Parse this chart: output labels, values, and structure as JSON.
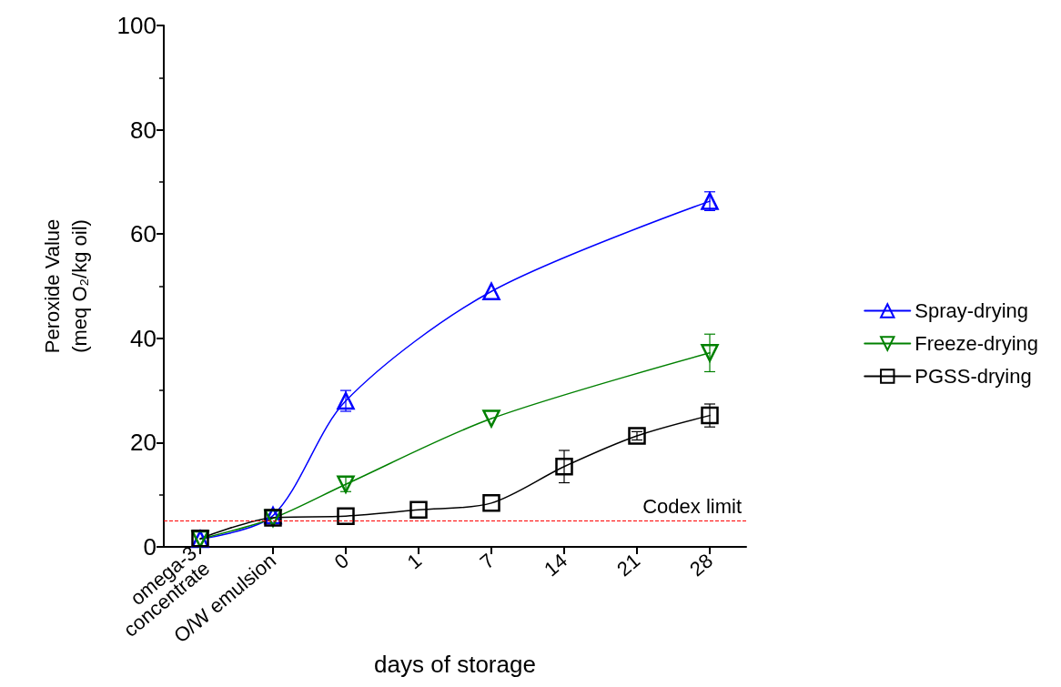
{
  "chart_data": {
    "type": "line",
    "xlabel": "days of storage",
    "ylabel": "Peroxide Value\n(meq O₂/kg oil)",
    "categories": [
      "omega-3\nconcentrate",
      "O/W emulsion",
      "0",
      "1",
      "7",
      "14",
      "21",
      "28"
    ],
    "ylim": [
      0,
      100
    ],
    "yticks": [
      0,
      20,
      40,
      60,
      80,
      100
    ],
    "grid": false,
    "legend": "right",
    "line_style": "solid",
    "series": [
      {
        "name": "Spray-drying",
        "color": "#0000ff",
        "marker": "triangle",
        "values": [
          1.5,
          6,
          28,
          null,
          49,
          null,
          null,
          66.3
        ],
        "errors": [
          null,
          null,
          2,
          null,
          null,
          null,
          null,
          1.8
        ]
      },
      {
        "name": "Freeze-drying",
        "color": "#008000",
        "marker": "triangle-down",
        "values": [
          1.5,
          5.5,
          12,
          null,
          24.6,
          null,
          null,
          37.2
        ],
        "errors": [
          null,
          null,
          1.4,
          null,
          null,
          null,
          null,
          3.6
        ]
      },
      {
        "name": "PGSS-drying",
        "color": "#000000",
        "marker": "square",
        "values": [
          1.6,
          5.6,
          5.9,
          7.1,
          8.4,
          15.4,
          21.3,
          25.2
        ],
        "errors": [
          null,
          null,
          null,
          null,
          null,
          3.1,
          0.8,
          2.2
        ]
      }
    ],
    "ref_lines": [
      {
        "axis": "y",
        "value": 5,
        "label": "Codex limit",
        "color": "#ff0000",
        "line_style": "dashed"
      }
    ]
  }
}
